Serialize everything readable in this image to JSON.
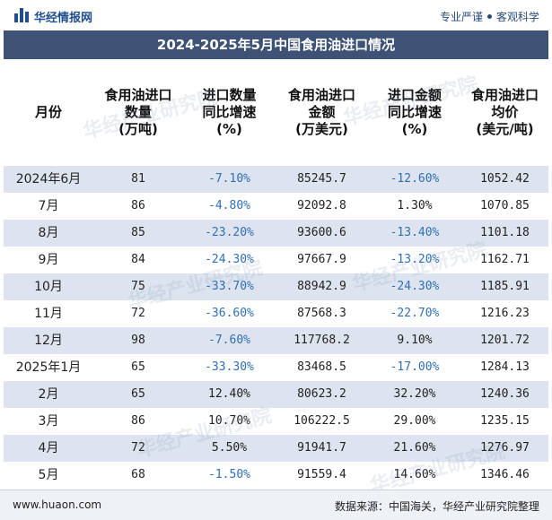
{
  "header": {
    "brand": "华经情报网",
    "slogan_left": "专业严谨",
    "slogan_right": "客观科学"
  },
  "title": "2024-2025年5月中国食用油进口情况",
  "columns": [
    "月份",
    "食用油进口数量(万吨)",
    "进口数量同比增速(%)",
    "食用油进口金额(万美元)",
    "进口金额同比增速(%)",
    "食用油进口均价(美元/吨)"
  ],
  "column_lines": [
    [
      "月份"
    ],
    [
      "食用油进口",
      "数量",
      "(万吨)"
    ],
    [
      "进口数量",
      "同比增速",
      "(%)"
    ],
    [
      "食用油进口",
      "金额",
      "(万美元)"
    ],
    [
      "进口金额",
      "同比增速",
      "(%)"
    ],
    [
      "食用油进口",
      "均价",
      "(美元/吨)"
    ]
  ],
  "rows": [
    [
      "2024年6月",
      "81",
      "-7.10%",
      "85245.7",
      "-12.60%",
      "1052.42"
    ],
    [
      "7月",
      "86",
      "-4.80%",
      "92092.8",
      "1.30%",
      "1070.85"
    ],
    [
      "8月",
      "85",
      "-23.20%",
      "93600.6",
      "-13.40%",
      "1101.18"
    ],
    [
      "9月",
      "84",
      "-24.30%",
      "97667.9",
      "-13.20%",
      "1162.71"
    ],
    [
      "10月",
      "75",
      "-33.70%",
      "88942.9",
      "-24.30%",
      "1185.91"
    ],
    [
      "11月",
      "72",
      "-36.60%",
      "87568.3",
      "-22.70%",
      "1216.23"
    ],
    [
      "12月",
      "98",
      "-7.60%",
      "117768.2",
      "9.10%",
      "1201.72"
    ],
    [
      "2025年1月",
      "65",
      "-33.30%",
      "83468.5",
      "-17.00%",
      "1284.13"
    ],
    [
      "2月",
      "65",
      "12.40%",
      "80623.2",
      "32.20%",
      "1240.36"
    ],
    [
      "3月",
      "86",
      "10.70%",
      "106222.5",
      "29.00%",
      "1235.15"
    ],
    [
      "4月",
      "72",
      "5.50%",
      "91941.7",
      "21.60%",
      "1276.97"
    ],
    [
      "5月",
      "68",
      "-1.50%",
      "91559.4",
      "14.60%",
      "1346.46"
    ]
  ],
  "footer": {
    "site": "www.huaon.com",
    "source": "数据来源：中国海关，华经产业研究院整理"
  },
  "watermark": "华经产业研究院",
  "colors": {
    "title_bg": "#3d5275",
    "alt_row": "#dde4ef",
    "negative": "#2f6fb4",
    "brand": "#1f4e8c"
  }
}
